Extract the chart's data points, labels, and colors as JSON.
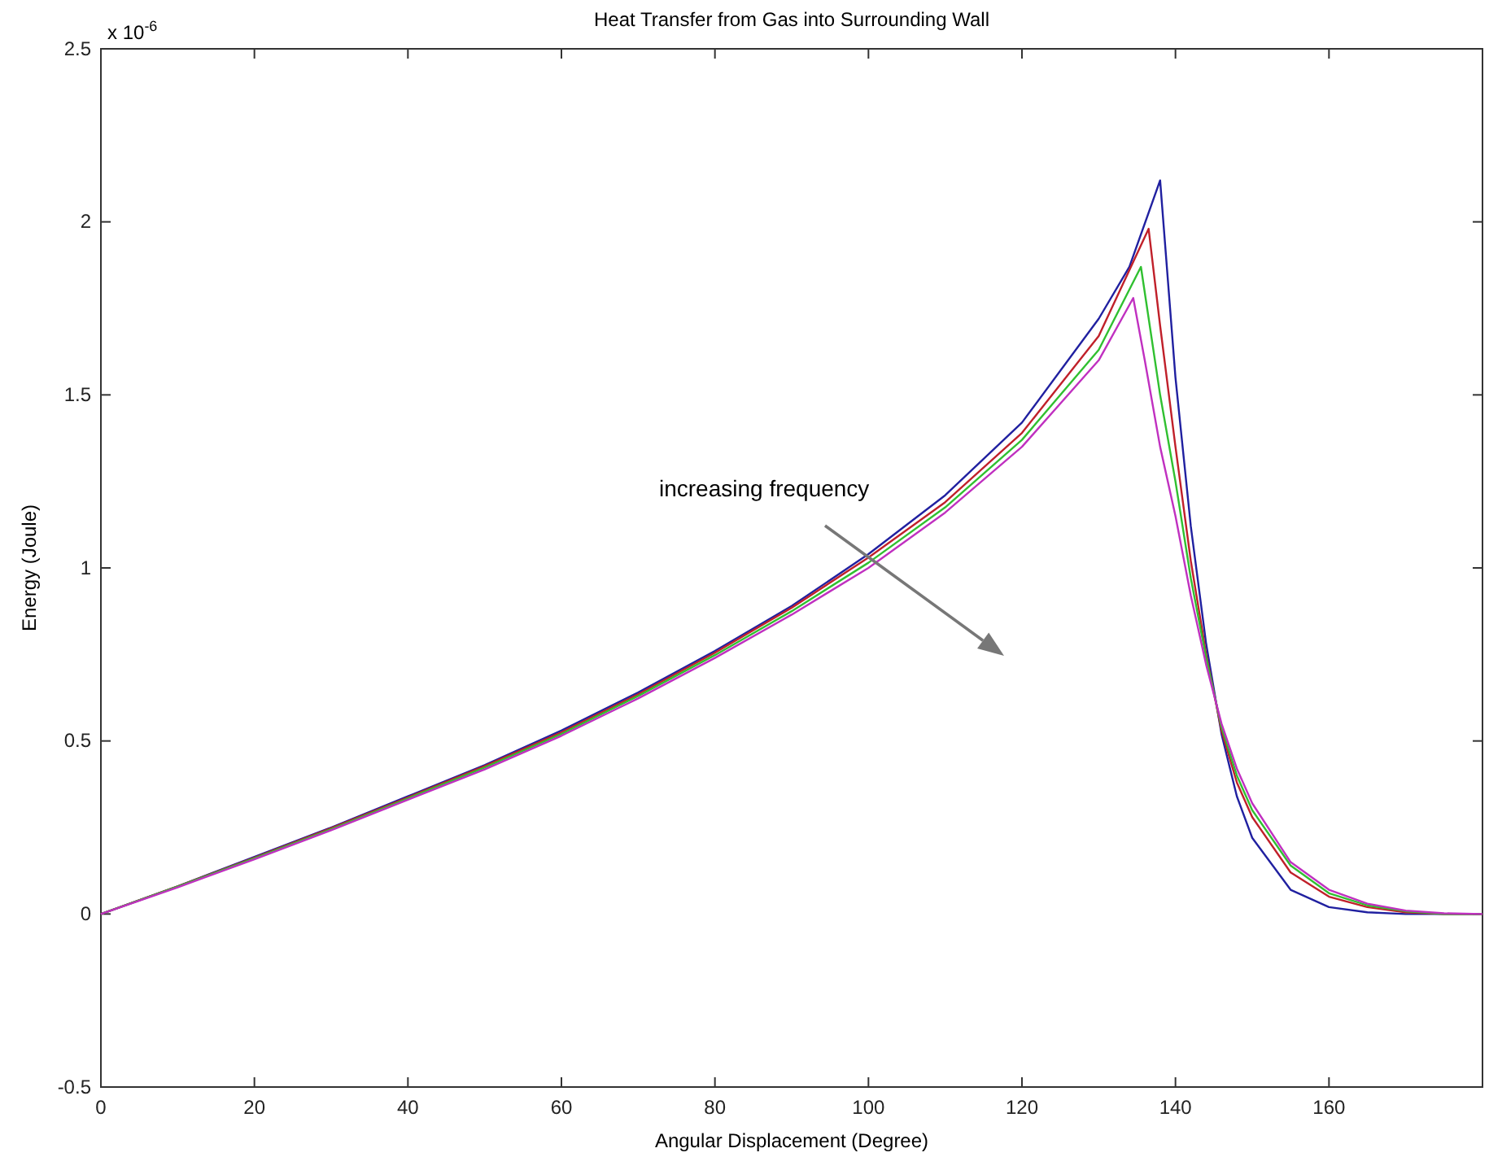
{
  "chart_data": {
    "type": "line",
    "title": "Heat Transfer from Gas into Surrounding Wall",
    "xlabel": "Angular Displacement (Degree)",
    "ylabel": "Energy (Joule)",
    "xlim": [
      0,
      180
    ],
    "xticks": [
      0,
      20,
      40,
      60,
      80,
      100,
      120,
      140,
      160
    ],
    "ylim": [
      -0.5,
      2.5
    ],
    "yticks": [
      -0.5,
      0,
      0.5,
      1,
      1.5,
      2,
      2.5
    ],
    "grid": false,
    "line_style": "solid",
    "annotations": [
      "x 10$^{-6}$",
      "increasing frequency"
    ],
    "series": [
      {
        "color": "#2020a0",
        "x": [
          0,
          10,
          20,
          30,
          40,
          50,
          60,
          70,
          80,
          90,
          100,
          110,
          120,
          130,
          134,
          138,
          140,
          142,
          144,
          146,
          148,
          150,
          155,
          160,
          165,
          170,
          180
        ],
        "values": [
          0,
          0.08,
          0.165,
          0.25,
          0.34,
          0.43,
          0.53,
          0.64,
          0.76,
          0.89,
          1.04,
          1.21,
          1.42,
          1.72,
          1.87,
          2.12,
          1.55,
          1.12,
          0.78,
          0.52,
          0.34,
          0.22,
          0.07,
          0.02,
          0.005,
          0,
          0
        ]
      },
      {
        "color": "#c0202a",
        "x": [
          0,
          10,
          20,
          30,
          40,
          50,
          60,
          70,
          80,
          90,
          100,
          110,
          120,
          130,
          136.5,
          138,
          140,
          142,
          144,
          146,
          148,
          150,
          155,
          160,
          165,
          170,
          175,
          180
        ],
        "values": [
          0,
          0.08,
          0.163,
          0.248,
          0.337,
          0.427,
          0.525,
          0.635,
          0.755,
          0.885,
          1.03,
          1.19,
          1.39,
          1.67,
          1.98,
          1.7,
          1.35,
          1.02,
          0.75,
          0.53,
          0.38,
          0.28,
          0.12,
          0.05,
          0.02,
          0.005,
          0,
          0
        ]
      },
      {
        "color": "#30c030",
        "x": [
          0,
          10,
          20,
          30,
          40,
          50,
          60,
          70,
          80,
          90,
          100,
          110,
          120,
          130,
          135.5,
          138,
          140,
          142,
          144,
          146,
          148,
          150,
          155,
          160,
          165,
          170,
          175,
          180
        ],
        "values": [
          0,
          0.079,
          0.161,
          0.245,
          0.334,
          0.423,
          0.52,
          0.63,
          0.748,
          0.875,
          1.015,
          1.175,
          1.37,
          1.63,
          1.87,
          1.5,
          1.25,
          0.97,
          0.74,
          0.54,
          0.4,
          0.3,
          0.14,
          0.06,
          0.025,
          0.008,
          0,
          0
        ]
      },
      {
        "color": "#c030c0",
        "x": [
          0,
          10,
          20,
          30,
          40,
          50,
          60,
          70,
          80,
          90,
          100,
          110,
          120,
          130,
          134.5,
          136,
          138,
          140,
          142,
          144,
          146,
          148,
          150,
          155,
          160,
          165,
          170,
          175,
          180
        ],
        "values": [
          0,
          0.077,
          0.158,
          0.242,
          0.33,
          0.418,
          0.515,
          0.623,
          0.74,
          0.865,
          1.0,
          1.16,
          1.35,
          1.6,
          1.78,
          1.6,
          1.35,
          1.15,
          0.92,
          0.72,
          0.55,
          0.42,
          0.32,
          0.15,
          0.07,
          0.03,
          0.01,
          0.002,
          0
        ]
      }
    ]
  }
}
